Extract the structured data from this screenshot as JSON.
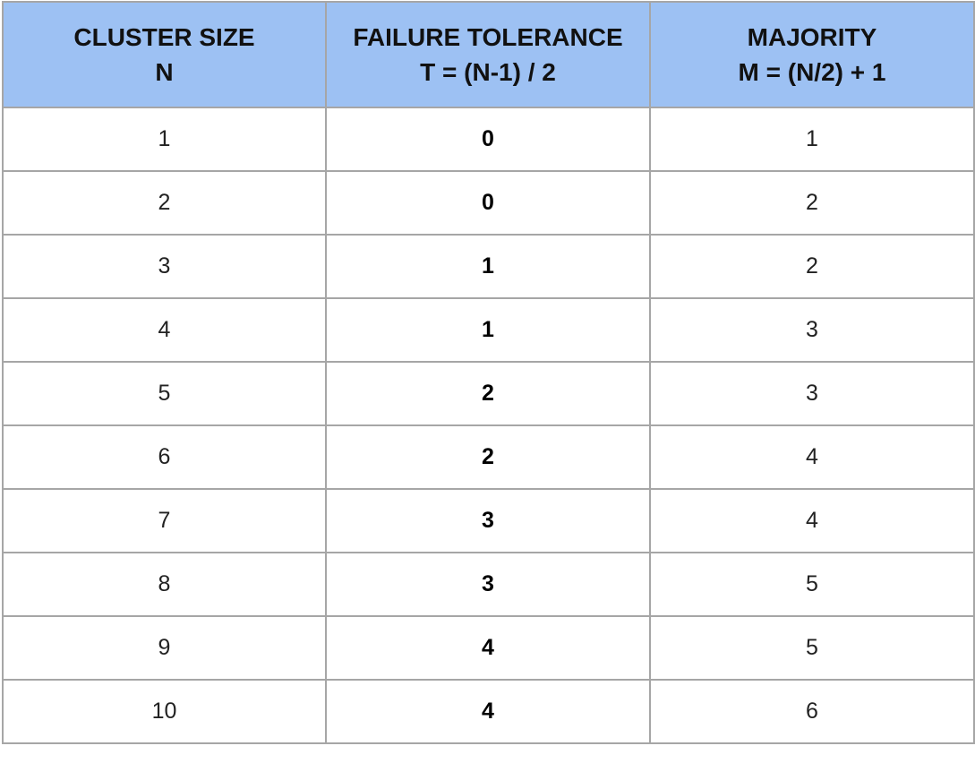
{
  "headers": [
    {
      "line1": "CLUSTER SIZE",
      "line2": "N"
    },
    {
      "line1": "FAILURE TOLERANCE",
      "line2": "T = (N-1) / 2"
    },
    {
      "line1": "MAJORITY",
      "line2": "M = (N/2) + 1"
    }
  ],
  "rows": [
    {
      "n": "1",
      "t": "0",
      "m": "1"
    },
    {
      "n": "2",
      "t": "0",
      "m": "2"
    },
    {
      "n": "3",
      "t": "1",
      "m": "2"
    },
    {
      "n": "4",
      "t": "1",
      "m": "3"
    },
    {
      "n": "5",
      "t": "2",
      "m": "3"
    },
    {
      "n": "6",
      "t": "2",
      "m": "4"
    },
    {
      "n": "7",
      "t": "3",
      "m": "4"
    },
    {
      "n": "8",
      "t": "3",
      "m": "5"
    },
    {
      "n": "9",
      "t": "4",
      "m": "5"
    },
    {
      "n": "10",
      "t": "4",
      "m": "6"
    }
  ],
  "colors": {
    "header_bg": "#9dc1f3",
    "border": "#a6a6a6"
  }
}
